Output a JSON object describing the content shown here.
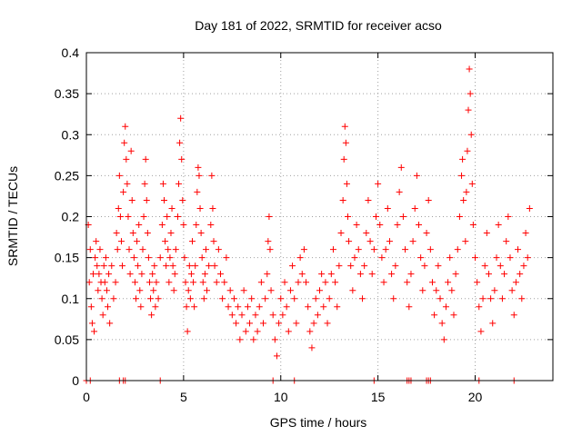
{
  "chart_data": {
    "type": "scatter",
    "title": "Day 181 of 2022, SRMTID for receiver acso",
    "xlabel": "GPS time / hours",
    "ylabel": "SRMTID / TECUs",
    "xlim": [
      0,
      24
    ],
    "ylim": [
      0,
      0.4
    ],
    "x_ticks": [
      0,
      5,
      10,
      15,
      20
    ],
    "x_tick_labels": [
      "0",
      "5",
      "10",
      "15",
      "20"
    ],
    "y_ticks": [
      0,
      0.05,
      0.1,
      0.15,
      0.2,
      0.25,
      0.3,
      0.35,
      0.4
    ],
    "y_tick_labels": [
      "0",
      "0.05",
      "0.1",
      "0.15",
      "0.2",
      "0.25",
      "0.3",
      "0.35",
      "0.4"
    ],
    "grid": true,
    "marker": "plus",
    "color": "#ff0000",
    "series": [
      {
        "name": "SRMTID",
        "points": [
          [
            0.1,
            0.19
          ],
          [
            0.15,
            0.12
          ],
          [
            0.2,
            0.16
          ],
          [
            0.25,
            0.09
          ],
          [
            0.3,
            0.07
          ],
          [
            0.35,
            0.13
          ],
          [
            0.4,
            0.06
          ],
          [
            0.45,
            0.15
          ],
          [
            0.5,
            0.17
          ],
          [
            0.55,
            0.14
          ],
          [
            0.6,
            0.11
          ],
          [
            0.65,
            0.13
          ],
          [
            0.7,
            0.16
          ],
          [
            0.75,
            0.12
          ],
          [
            0.8,
            0.1
          ],
          [
            0.85,
            0.08
          ],
          [
            0.9,
            0.14
          ],
          [
            0.95,
            0.12
          ],
          [
            1.0,
            0.15
          ],
          [
            1.05,
            0.11
          ],
          [
            1.1,
            0.09
          ],
          [
            1.15,
            0.13
          ],
          [
            1.2,
            0.07
          ],
          [
            1.3,
            0.14
          ],
          [
            1.4,
            0.1
          ],
          [
            1.5,
            0.12
          ],
          [
            1.55,
            0.18
          ],
          [
            1.6,
            0.16
          ],
          [
            1.65,
            0.21
          ],
          [
            1.7,
            0.25
          ],
          [
            1.75,
            0.2
          ],
          [
            1.8,
            0.17
          ],
          [
            1.85,
            0.14
          ],
          [
            1.9,
            0.23
          ],
          [
            1.95,
            0.29
          ],
          [
            2.0,
            0.31
          ],
          [
            2.05,
            0.27
          ],
          [
            2.1,
            0.24
          ],
          [
            2.15,
            0.2
          ],
          [
            2.2,
            0.16
          ],
          [
            2.25,
            0.13
          ],
          [
            2.3,
            0.28
          ],
          [
            2.35,
            0.22
          ],
          [
            2.4,
            0.18
          ],
          [
            2.45,
            0.15
          ],
          [
            2.5,
            0.12
          ],
          [
            2.55,
            0.1
          ],
          [
            2.6,
            0.17
          ],
          [
            2.65,
            0.14
          ],
          [
            2.7,
            0.19
          ],
          [
            2.75,
            0.11
          ],
          [
            2.8,
            0.09
          ],
          [
            2.85,
            0.13
          ],
          [
            2.9,
            0.16
          ],
          [
            2.95,
            0.2
          ],
          [
            3.0,
            0.24
          ],
          [
            3.05,
            0.27
          ],
          [
            3.1,
            0.22
          ],
          [
            3.15,
            0.18
          ],
          [
            3.2,
            0.15
          ],
          [
            3.25,
            0.12
          ],
          [
            3.3,
            0.1
          ],
          [
            3.35,
            0.08
          ],
          [
            3.4,
            0.13
          ],
          [
            3.45,
            0.11
          ],
          [
            3.5,
            0.14
          ],
          [
            3.55,
            0.09
          ],
          [
            3.6,
            0.12
          ],
          [
            3.7,
            0.1
          ],
          [
            3.8,
            0.15
          ],
          [
            3.9,
            0.19
          ],
          [
            3.95,
            0.24
          ],
          [
            4.0,
            0.22
          ],
          [
            4.05,
            0.17
          ],
          [
            4.1,
            0.14
          ],
          [
            4.15,
            0.2
          ],
          [
            4.2,
            0.16
          ],
          [
            4.25,
            0.12
          ],
          [
            4.3,
            0.15
          ],
          [
            4.35,
            0.18
          ],
          [
            4.4,
            0.21
          ],
          [
            4.45,
            0.14
          ],
          [
            4.5,
            0.11
          ],
          [
            4.55,
            0.13
          ],
          [
            4.6,
            0.16
          ],
          [
            4.7,
            0.2
          ],
          [
            4.75,
            0.24
          ],
          [
            4.8,
            0.29
          ],
          [
            4.85,
            0.32
          ],
          [
            4.9,
            0.27
          ],
          [
            4.95,
            0.22
          ],
          [
            5.0,
            0.19
          ],
          [
            5.05,
            0.15
          ],
          [
            5.1,
            0.12
          ],
          [
            5.15,
            0.09
          ],
          [
            5.2,
            0.06
          ],
          [
            5.25,
            0.11
          ],
          [
            5.3,
            0.14
          ],
          [
            5.35,
            0.1
          ],
          [
            5.4,
            0.13
          ],
          [
            5.45,
            0.17
          ],
          [
            5.5,
            0.12
          ],
          [
            5.55,
            0.09
          ],
          [
            5.6,
            0.14
          ],
          [
            5.65,
            0.19
          ],
          [
            5.7,
            0.23
          ],
          [
            5.75,
            0.26
          ],
          [
            5.8,
            0.25
          ],
          [
            5.85,
            0.21
          ],
          [
            5.9,
            0.18
          ],
          [
            5.95,
            0.15
          ],
          [
            6.0,
            0.12
          ],
          [
            6.05,
            0.1
          ],
          [
            6.1,
            0.13
          ],
          [
            6.15,
            0.16
          ],
          [
            6.2,
            0.11
          ],
          [
            6.3,
            0.14
          ],
          [
            6.4,
            0.19
          ],
          [
            6.45,
            0.25
          ],
          [
            6.5,
            0.21
          ],
          [
            6.55,
            0.17
          ],
          [
            6.6,
            0.14
          ],
          [
            6.7,
            0.12
          ],
          [
            6.8,
            0.16
          ],
          [
            6.9,
            0.13
          ],
          [
            7.0,
            0.1
          ],
          [
            7.1,
            0.12
          ],
          [
            7.2,
            0.15
          ],
          [
            7.3,
            0.09
          ],
          [
            7.4,
            0.11
          ],
          [
            7.5,
            0.08
          ],
          [
            7.6,
            0.1
          ],
          [
            7.7,
            0.07
          ],
          [
            7.8,
            0.09
          ],
          [
            7.9,
            0.05
          ],
          [
            8.0,
            0.08
          ],
          [
            8.1,
            0.11
          ],
          [
            8.2,
            0.06
          ],
          [
            8.3,
            0.09
          ],
          [
            8.4,
            0.07
          ],
          [
            8.5,
            0.1
          ],
          [
            8.6,
            0.05
          ],
          [
            8.7,
            0.08
          ],
          [
            8.8,
            0.06
          ],
          [
            8.9,
            0.09
          ],
          [
            9.0,
            0.12
          ],
          [
            9.1,
            0.07
          ],
          [
            9.2,
            0.1
          ],
          [
            9.3,
            0.13
          ],
          [
            9.35,
            0.17
          ],
          [
            9.4,
            0.2
          ],
          [
            9.45,
            0.16
          ],
          [
            9.5,
            0.11
          ],
          [
            9.6,
            0.08
          ],
          [
            9.7,
            0.05
          ],
          [
            9.8,
            0.03
          ],
          [
            9.9,
            0.07
          ],
          [
            10.0,
            0.1
          ],
          [
            10.1,
            0.08
          ],
          [
            10.2,
            0.12
          ],
          [
            10.3,
            0.09
          ],
          [
            10.4,
            0.06
          ],
          [
            10.5,
            0.11
          ],
          [
            10.6,
            0.14
          ],
          [
            10.7,
            0.1
          ],
          [
            10.8,
            0.07
          ],
          [
            10.9,
            0.12
          ],
          [
            11.0,
            0.15
          ],
          [
            11.1,
            0.13
          ],
          [
            11.2,
            0.16
          ],
          [
            11.3,
            0.12
          ],
          [
            11.4,
            0.09
          ],
          [
            11.5,
            0.06
          ],
          [
            11.6,
            0.04
          ],
          [
            11.7,
            0.07
          ],
          [
            11.8,
            0.1
          ],
          [
            11.9,
            0.08
          ],
          [
            12.0,
            0.11
          ],
          [
            12.1,
            0.13
          ],
          [
            12.2,
            0.09
          ],
          [
            12.3,
            0.12
          ],
          [
            12.4,
            0.07
          ],
          [
            12.5,
            0.1
          ],
          [
            12.6,
            0.13
          ],
          [
            12.7,
            0.16
          ],
          [
            12.8,
            0.12
          ],
          [
            12.9,
            0.09
          ],
          [
            13.0,
            0.14
          ],
          [
            13.1,
            0.18
          ],
          [
            13.2,
            0.22
          ],
          [
            13.25,
            0.27
          ],
          [
            13.3,
            0.31
          ],
          [
            13.35,
            0.29
          ],
          [
            13.4,
            0.24
          ],
          [
            13.45,
            0.2
          ],
          [
            13.5,
            0.17
          ],
          [
            13.6,
            0.14
          ],
          [
            13.7,
            0.11
          ],
          [
            13.8,
            0.15
          ],
          [
            13.9,
            0.19
          ],
          [
            14.0,
            0.16
          ],
          [
            14.1,
            0.13
          ],
          [
            14.2,
            0.1
          ],
          [
            14.3,
            0.14
          ],
          [
            14.4,
            0.18
          ],
          [
            14.5,
            0.22
          ],
          [
            14.6,
            0.17
          ],
          [
            14.7,
            0.13
          ],
          [
            14.8,
            0.16
          ],
          [
            14.9,
            0.2
          ],
          [
            15.0,
            0.24
          ],
          [
            15.1,
            0.19
          ],
          [
            15.2,
            0.15
          ],
          [
            15.3,
            0.12
          ],
          [
            15.4,
            0.16
          ],
          [
            15.5,
            0.21
          ],
          [
            15.6,
            0.17
          ],
          [
            15.7,
            0.13
          ],
          [
            15.8,
            0.1
          ],
          [
            15.9,
            0.14
          ],
          [
            16.0,
            0.19
          ],
          [
            16.1,
            0.23
          ],
          [
            16.2,
            0.26
          ],
          [
            16.3,
            0.2
          ],
          [
            16.4,
            0.16
          ],
          [
            16.5,
            0.12
          ],
          [
            16.6,
            0.09
          ],
          [
            16.7,
            0.13
          ],
          [
            16.8,
            0.17
          ],
          [
            16.9,
            0.21
          ],
          [
            17.0,
            0.25
          ],
          [
            17.1,
            0.19
          ],
          [
            17.2,
            0.15
          ],
          [
            17.3,
            0.11
          ],
          [
            17.4,
            0.14
          ],
          [
            17.5,
            0.18
          ],
          [
            17.6,
            0.22
          ],
          [
            17.7,
            0.16
          ],
          [
            17.8,
            0.12
          ],
          [
            17.9,
            0.08
          ],
          [
            18.0,
            0.11
          ],
          [
            18.1,
            0.14
          ],
          [
            18.2,
            0.1
          ],
          [
            18.3,
            0.07
          ],
          [
            18.4,
            0.05
          ],
          [
            18.5,
            0.09
          ],
          [
            18.6,
            0.12
          ],
          [
            18.7,
            0.15
          ],
          [
            18.8,
            0.11
          ],
          [
            18.9,
            0.08
          ],
          [
            19.0,
            0.13
          ],
          [
            19.1,
            0.16
          ],
          [
            19.2,
            0.2
          ],
          [
            19.3,
            0.25
          ],
          [
            19.35,
            0.27
          ],
          [
            19.4,
            0.22
          ],
          [
            19.5,
            0.17
          ],
          [
            19.55,
            0.23
          ],
          [
            19.6,
            0.28
          ],
          [
            19.65,
            0.33
          ],
          [
            19.7,
            0.38
          ],
          [
            19.75,
            0.35
          ],
          [
            19.8,
            0.3
          ],
          [
            19.85,
            0.24
          ],
          [
            19.9,
            0.19
          ],
          [
            20.0,
            0.15
          ],
          [
            20.1,
            0.12
          ],
          [
            20.2,
            0.09
          ],
          [
            20.3,
            0.06
          ],
          [
            20.4,
            0.1
          ],
          [
            20.5,
            0.14
          ],
          [
            20.6,
            0.18
          ],
          [
            20.7,
            0.13
          ],
          [
            20.8,
            0.1
          ],
          [
            20.9,
            0.07
          ],
          [
            21.0,
            0.11
          ],
          [
            21.1,
            0.15
          ],
          [
            21.2,
            0.19
          ],
          [
            21.3,
            0.14
          ],
          [
            21.4,
            0.1
          ],
          [
            21.5,
            0.13
          ],
          [
            21.6,
            0.17
          ],
          [
            21.7,
            0.2
          ],
          [
            21.8,
            0.15
          ],
          [
            21.9,
            0.11
          ],
          [
            22.0,
            0.08
          ],
          [
            22.1,
            0.12
          ],
          [
            22.2,
            0.16
          ],
          [
            22.3,
            0.13
          ],
          [
            22.4,
            0.1
          ],
          [
            22.5,
            0.14
          ],
          [
            22.6,
            0.18
          ],
          [
            22.7,
            0.15
          ],
          [
            22.8,
            0.21
          ],
          [
            0,
            0
          ],
          [
            0.2,
            0
          ],
          [
            1.7,
            0
          ],
          [
            1.9,
            0
          ],
          [
            2.0,
            0
          ],
          [
            3.8,
            0
          ],
          [
            9.6,
            0
          ],
          [
            10.7,
            0
          ],
          [
            14.8,
            0
          ],
          [
            16.5,
            0
          ],
          [
            16.6,
            0
          ],
          [
            16.7,
            0
          ],
          [
            17.5,
            0
          ],
          [
            17.6,
            0
          ],
          [
            17.7,
            0
          ],
          [
            20.2,
            0
          ],
          [
            22.0,
            0
          ]
        ]
      }
    ]
  }
}
